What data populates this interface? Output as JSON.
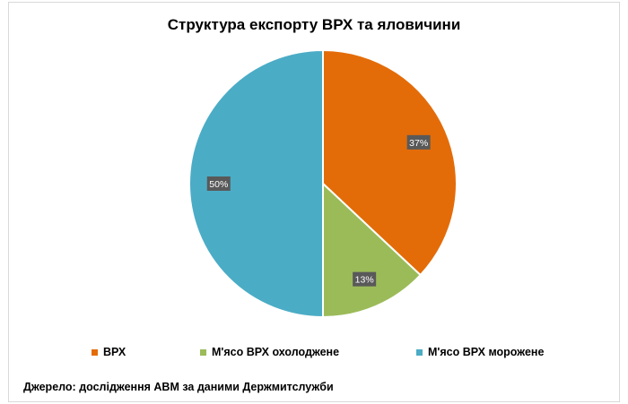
{
  "chart_data": {
    "type": "pie",
    "title": "Структура експорту ВРХ та яловичини",
    "slices": [
      {
        "label": "ВРХ",
        "value": 37,
        "display": "37%",
        "color": "#e36c09"
      },
      {
        "label": "М'ясо ВРХ охолоджене",
        "value": 13,
        "display": "13%",
        "color": "#9bbb59"
      },
      {
        "label": "М'ясо ВРХ морожене",
        "value": 50,
        "display": "50%",
        "color": "#4bacc6"
      }
    ],
    "legend_position": "bottom",
    "data_labels": true
  },
  "source_note": "Джерело: дослідження АВМ за даними Держмитслужби"
}
